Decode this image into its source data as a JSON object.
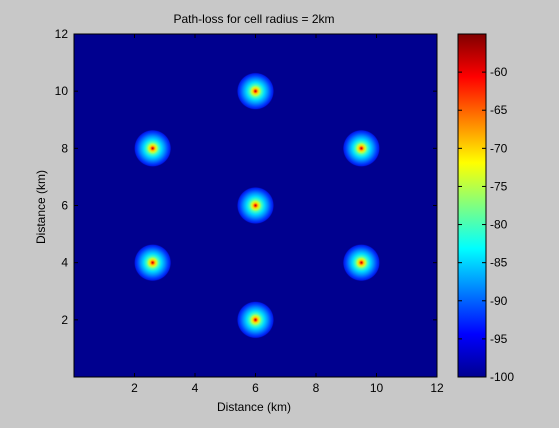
{
  "chart_data": {
    "type": "heatmap",
    "title": "Path-loss for cell radius = 2km",
    "xlabel": "Distance (km)",
    "ylabel": "Distance (km)",
    "xlim": [
      0,
      12
    ],
    "ylim": [
      0,
      12
    ],
    "x_ticks": [
      2,
      4,
      6,
      8,
      10,
      12
    ],
    "y_ticks": [
      2,
      4,
      6,
      8,
      10,
      12
    ],
    "colorbar": {
      "range": [
        -100,
        -55
      ],
      "ticks": [
        -100,
        -95,
        -90,
        -85,
        -80,
        -75,
        -70,
        -65,
        -60
      ],
      "colormap": "jet"
    },
    "background_value": -100,
    "cell_radius_km": 2,
    "cells": [
      {
        "x": 6.0,
        "y": 10.0
      },
      {
        "x": 2.6,
        "y": 8.0
      },
      {
        "x": 9.5,
        "y": 8.0
      },
      {
        "x": 6.0,
        "y": 6.0
      },
      {
        "x": 2.6,
        "y": 4.0
      },
      {
        "x": 9.5,
        "y": 4.0
      },
      {
        "x": 6.0,
        "y": 2.0
      }
    ],
    "peak_value": -57,
    "grid": false,
    "legend": "none"
  },
  "colors": {
    "figure_background": "#c8c8c8",
    "plot_background": "#00008f",
    "jet_low": "#00008f",
    "jet_high": "#800000"
  }
}
